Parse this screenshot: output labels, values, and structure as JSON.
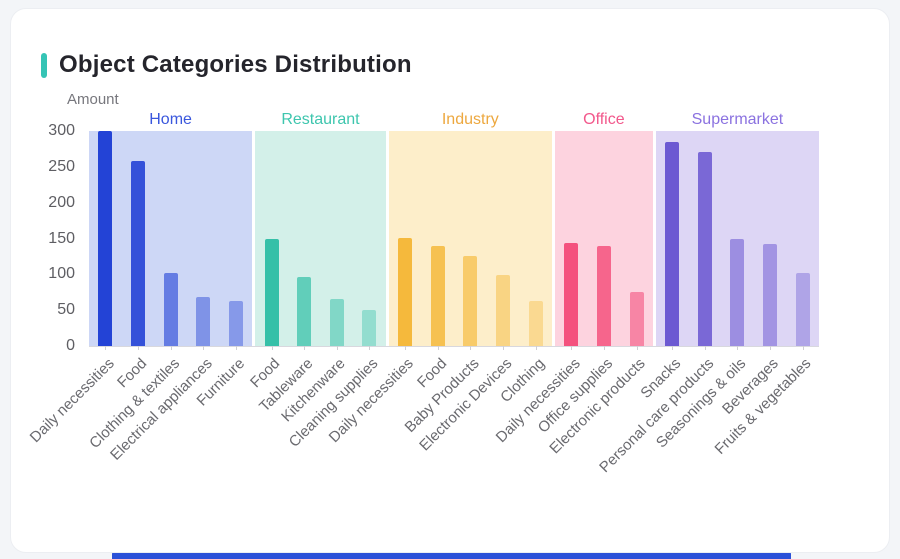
{
  "page": {
    "accent_color": "#35c4b5",
    "bottom_bar_color": "#2b51d8"
  },
  "chart_data": {
    "type": "bar",
    "title": "Object Categories Distribution",
    "ylabel": "Amount",
    "xlabel": "",
    "ylim": [
      0,
      300
    ],
    "yticks": [
      300,
      250,
      200,
      150,
      100,
      50,
      0
    ],
    "grid": false,
    "legend_position": "top",
    "groups": [
      {
        "name": "Home",
        "label_color": "#3a57dd",
        "color": "#2343d6",
        "band_color": "#cdd7f6",
        "alphas": [
          1,
          0.9,
          0.62,
          0.46,
          0.42
        ],
        "bars": [
          {
            "label": "Daily necessities",
            "value": 300
          },
          {
            "label": "Food",
            "value": 258
          },
          {
            "label": "Clothing & textiles",
            "value": 102
          },
          {
            "label": "Electrical appliances",
            "value": 68
          },
          {
            "label": "Furniture",
            "value": 63
          }
        ]
      },
      {
        "name": "Restaurant",
        "label_color": "#3ec6ae",
        "color": "#35c0a8",
        "band_color": "#d3f0e9",
        "alphas": [
          1,
          0.72,
          0.52,
          0.4
        ],
        "bars": [
          {
            "label": "Food",
            "value": 149
          },
          {
            "label": "Tableware",
            "value": 96
          },
          {
            "label": "Kitchenware",
            "value": 65
          },
          {
            "label": "Cleaning supplies",
            "value": 50
          }
        ]
      },
      {
        "name": "Industry",
        "label_color": "#eda83f",
        "color": "#f5b93c",
        "band_color": "#fdeeca",
        "alphas": [
          1,
          0.85,
          0.68,
          0.5,
          0.4
        ],
        "bars": [
          {
            "label": "Daily necessities",
            "value": 151
          },
          {
            "label": "Food",
            "value": 139
          },
          {
            "label": "Baby Products",
            "value": 125
          },
          {
            "label": "Electronic Devices",
            "value": 99
          },
          {
            "label": "Clothing",
            "value": 63
          }
        ]
      },
      {
        "name": "Office",
        "label_color": "#f2578b",
        "color": "#f4517e",
        "band_color": "#fdd3df",
        "alphas": [
          1,
          0.85,
          0.6
        ],
        "bars": [
          {
            "label": "Daily necessities",
            "value": 144
          },
          {
            "label": "Office supplies",
            "value": 139
          },
          {
            "label": "Electronic products",
            "value": 75
          }
        ]
      },
      {
        "name": "Supermarket",
        "label_color": "#8b72e0",
        "color": "#6c59d2",
        "band_color": "#ddd6f5",
        "alphas": [
          1,
          0.88,
          0.58,
          0.52,
          0.4
        ],
        "bars": [
          {
            "label": "Snacks",
            "value": 285
          },
          {
            "label": "Personal care products",
            "value": 271
          },
          {
            "label": "Seasonings & oils",
            "value": 149
          },
          {
            "label": "Beverages",
            "value": 142
          },
          {
            "label": "Fruits & vegetables",
            "value": 102
          }
        ]
      }
    ]
  }
}
